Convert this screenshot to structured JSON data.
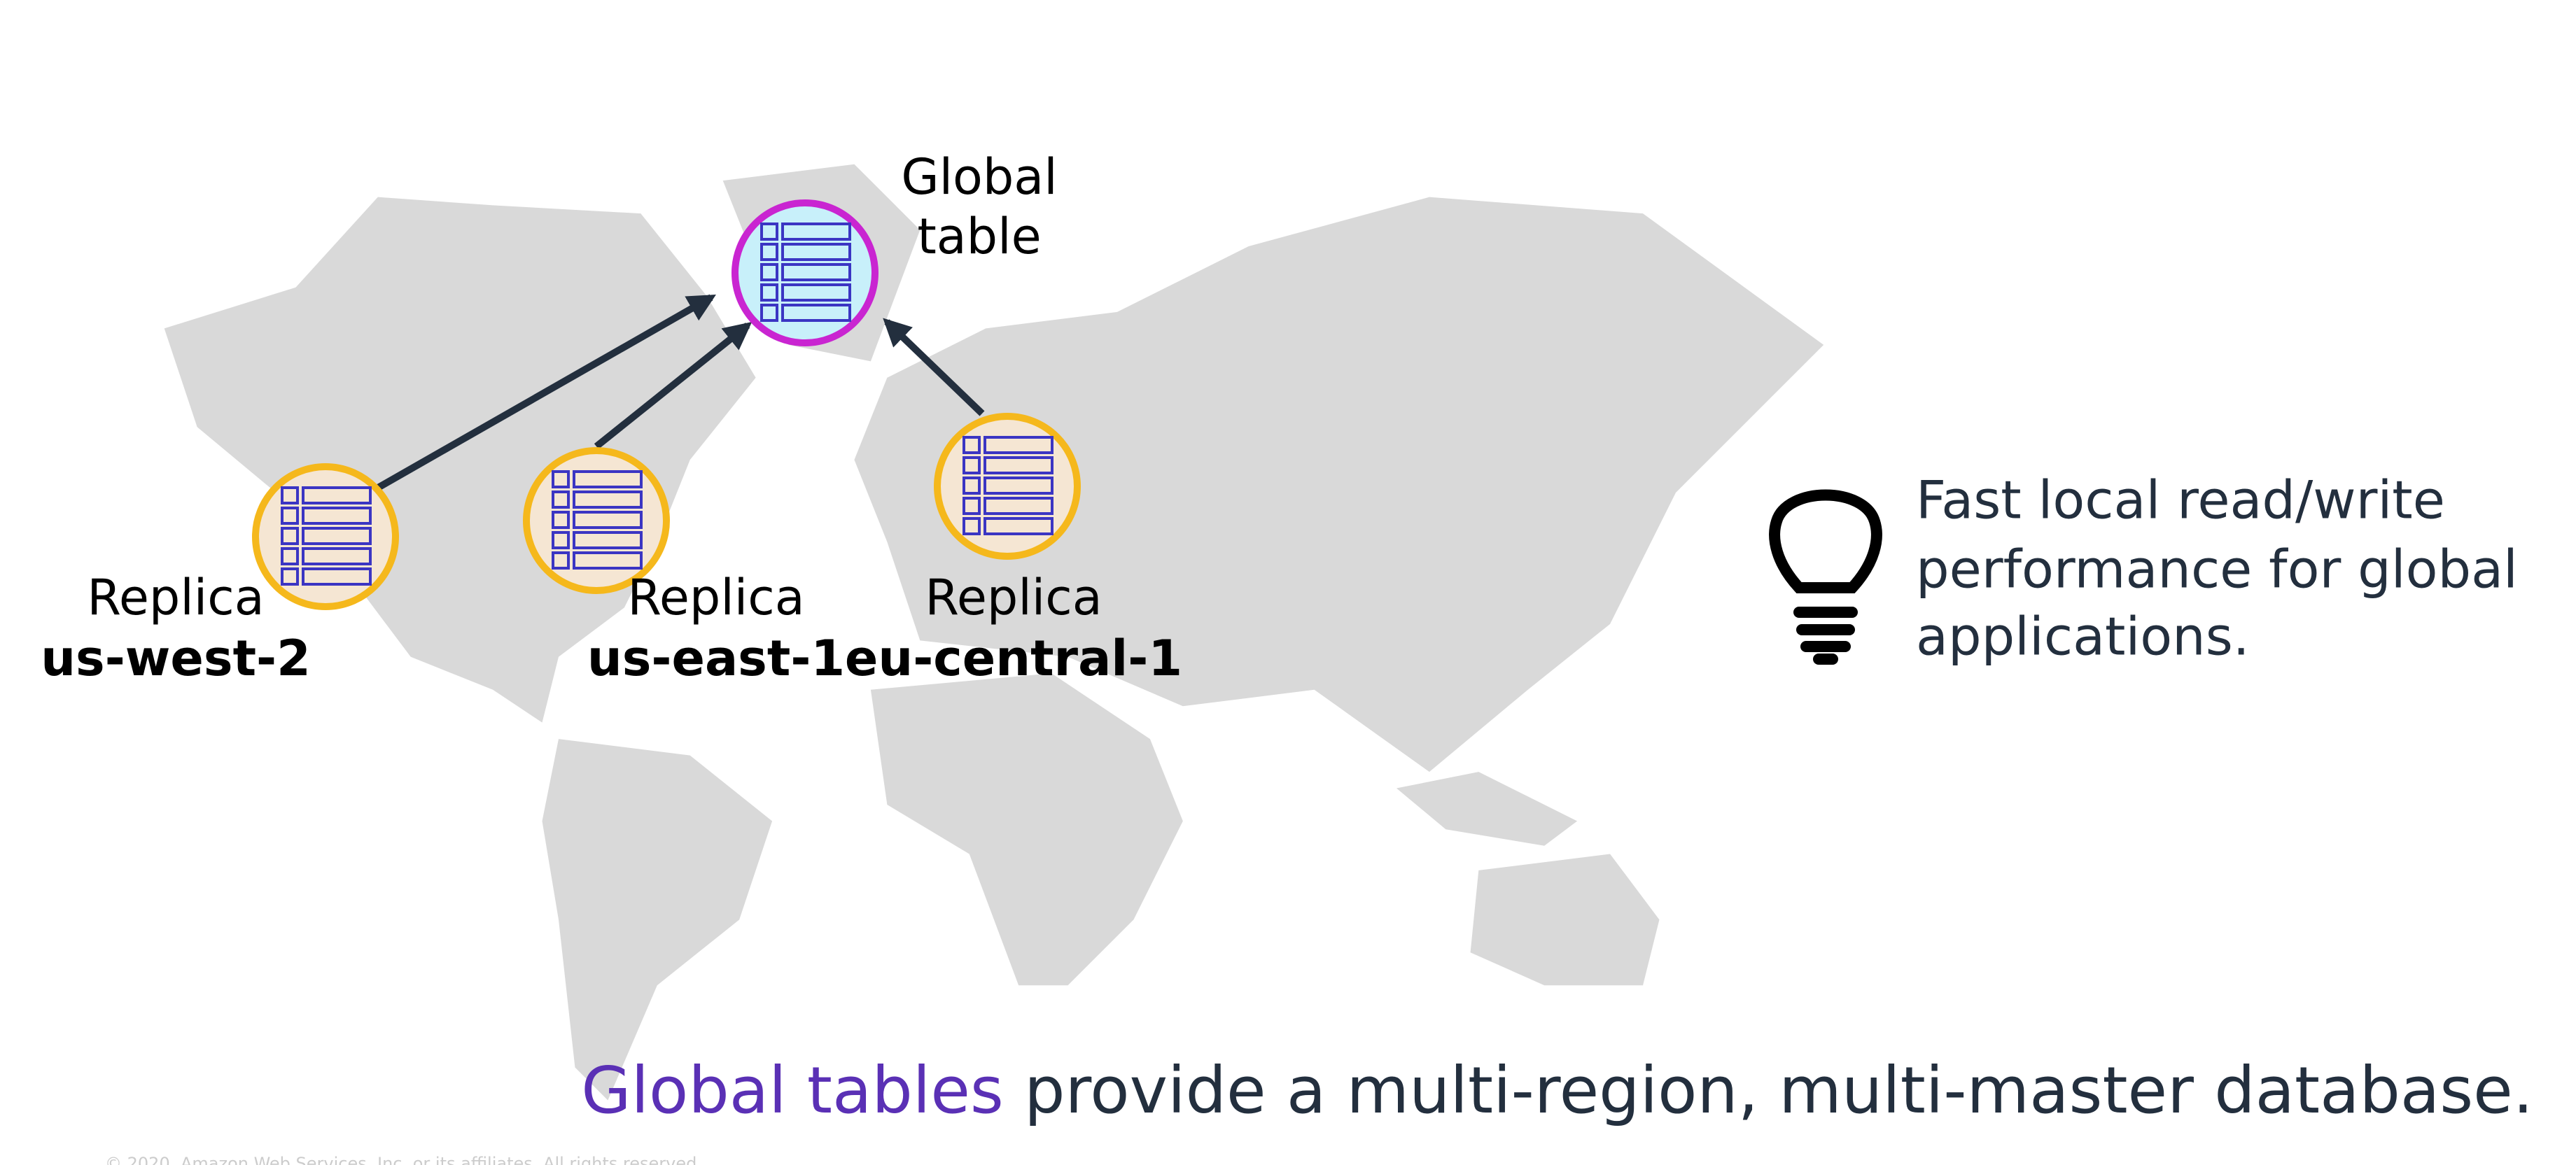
{
  "global_table": {
    "label_lines": [
      "Global",
      "table"
    ]
  },
  "replicas": [
    {
      "label": "Replica",
      "region": "us-west-2"
    },
    {
      "label": "Replica",
      "region": "us-east-1"
    },
    {
      "label": "Replica",
      "region": "eu-central-1"
    }
  ],
  "callout": {
    "lines": [
      "Fast local read/write",
      "performance for global",
      "applications."
    ]
  },
  "caption": {
    "highlight": "Global tables",
    "rest": " provide a multi-region, multi-master database."
  },
  "footer": "© 2020, Amazon Web Services, Inc. or its affiliates. All rights reserved."
}
